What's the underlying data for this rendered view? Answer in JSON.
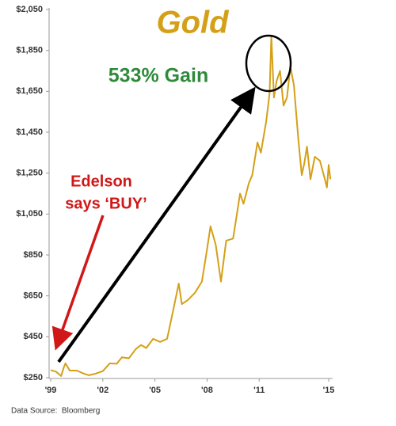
{
  "chart_data": {
    "type": "line",
    "title": "Gold",
    "annotations": {
      "gain": "533% Gain",
      "buy": [
        "Edelson",
        "says ‘BUY’"
      ],
      "source": "Data Source:  Bloomberg"
    },
    "series": [
      {
        "name": "Gold",
        "color": "#d4a017",
        "x": [
          1999.0,
          1999.3,
          1999.6,
          1999.75,
          1999.85,
          2000.1,
          2000.5,
          2000.9,
          2001.2,
          2001.6,
          2002.0,
          2002.4,
          2002.8,
          2003.1,
          2003.5,
          2003.9,
          2004.2,
          2004.5,
          2004.9,
          2005.3,
          2005.7,
          2006.0,
          2006.37,
          2006.55,
          2006.9,
          2007.3,
          2007.7,
          2007.95,
          2008.2,
          2008.5,
          2008.8,
          2009.1,
          2009.5,
          2009.9,
          2010.1,
          2010.4,
          2010.6,
          2010.9,
          2011.1,
          2011.4,
          2011.6,
          2011.7,
          2011.85,
          2012.0,
          2012.2,
          2012.4,
          2012.6,
          2012.8,
          2013.0,
          2013.25,
          2013.45,
          2013.6,
          2013.75,
          2013.95,
          2014.2,
          2014.5,
          2014.75,
          2014.9,
          2015.0,
          2015.1
        ],
        "values": [
          287,
          280,
          258,
          300,
          320,
          285,
          285,
          270,
          262,
          270,
          282,
          320,
          318,
          350,
          345,
          390,
          410,
          395,
          440,
          425,
          440,
          560,
          710,
          610,
          630,
          665,
          720,
          850,
          990,
          900,
          720,
          920,
          930,
          1150,
          1100,
          1200,
          1240,
          1400,
          1350,
          1500,
          1640,
          1920,
          1620,
          1700,
          1750,
          1580,
          1620,
          1770,
          1680,
          1420,
          1240,
          1300,
          1380,
          1220,
          1330,
          1310,
          1230,
          1180,
          1290,
          1220
        ]
      }
    ],
    "xlim": [
      1999,
      2015
    ],
    "xticks": [
      {
        "value": 1999,
        "label": "'99"
      },
      {
        "value": 2002,
        "label": "'02"
      },
      {
        "value": 2005,
        "label": "'05"
      },
      {
        "value": 2008,
        "label": "'08"
      },
      {
        "value": 2011,
        "label": "'11"
      },
      {
        "value": 2015,
        "label": "'15"
      }
    ],
    "ylim": [
      250,
      2050
    ],
    "yticks": [
      {
        "value": 250,
        "label": "$250"
      },
      {
        "value": 450,
        "label": "$450"
      },
      {
        "value": 650,
        "label": "$650"
      },
      {
        "value": 850,
        "label": "$850"
      },
      {
        "value": 1050,
        "label": "$1,050"
      },
      {
        "value": 1250,
        "label": "$1,250"
      },
      {
        "value": 1450,
        "label": "$1,450"
      },
      {
        "value": 1650,
        "label": "$1,650"
      },
      {
        "value": 1850,
        "label": "$1,850"
      },
      {
        "value": 2050,
        "label": "$2,050"
      }
    ],
    "grid": false
  }
}
